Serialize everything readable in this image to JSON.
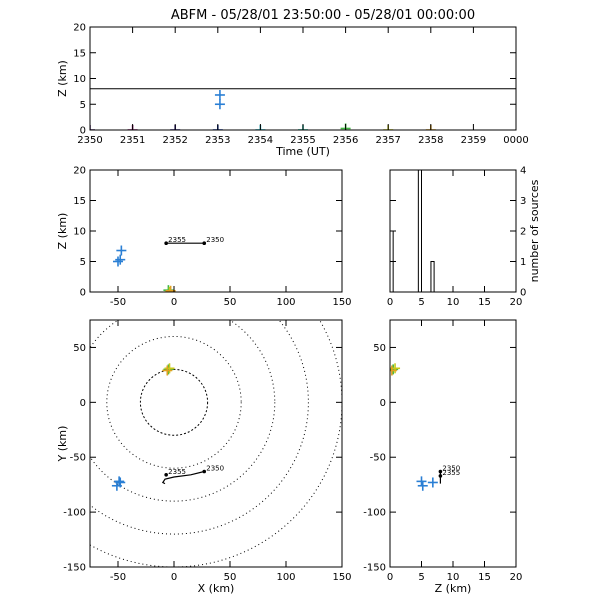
{
  "title": "ABFM - 05/28/01 23:50:00 - 05/28/01 00:00:00",
  "chart_data": [
    {
      "id": "time-height",
      "type": "scatter",
      "xlabel": "Time (UT)",
      "ylabel": "Z (km)",
      "x_ticks": [
        0,
        1,
        2,
        3,
        4,
        5,
        6,
        7,
        8,
        9,
        10
      ],
      "x_tick_labels": [
        "2350",
        "2351",
        "2352",
        "2353",
        "2354",
        "2355",
        "2356",
        "2357",
        "2358",
        "2359",
        "0000"
      ],
      "xlim": [
        0,
        10
      ],
      "ylim": [
        0,
        20
      ],
      "y_ticks": [
        0,
        5,
        10,
        15,
        20
      ],
      "reference_line_y": 8,
      "points": [
        {
          "x": 0.0,
          "y": 0.0,
          "color": "#4b2a6b"
        },
        {
          "x": 1.0,
          "y": 0.0,
          "color": "#8a1a6c"
        },
        {
          "x": 2.0,
          "y": 0.0,
          "color": "#3a2a90"
        },
        {
          "x": 3.0,
          "y": 0.0,
          "color": "#1a3fb0"
        },
        {
          "x": 3.05,
          "y": 5.0,
          "color": "#2a7fd4"
        },
        {
          "x": 3.05,
          "y": 6.8,
          "color": "#2a7fd4"
        },
        {
          "x": 4.0,
          "y": 0.0,
          "color": "#1ab6c8"
        },
        {
          "x": 5.0,
          "y": 0.0,
          "color": "#1ab69a"
        },
        {
          "x": 6.0,
          "y": 0.3,
          "color": "#3fb83f"
        },
        {
          "x": 7.0,
          "y": 0.0,
          "color": "#c8c81a"
        },
        {
          "x": 8.0,
          "y": 0.0,
          "color": "#e0a020"
        }
      ]
    },
    {
      "id": "xz-projection",
      "type": "scatter",
      "xlabel": "",
      "ylabel": "Z (km)",
      "xlim": [
        -75,
        150
      ],
      "ylim": [
        0,
        20
      ],
      "x_ticks": [
        -50,
        0,
        50,
        100,
        150
      ],
      "y_ticks": [
        0,
        5,
        10,
        15,
        20
      ],
      "points": [
        {
          "x": -50,
          "y": 5.0,
          "color": "#2a7fd4"
        },
        {
          "x": -48,
          "y": 5.3,
          "color": "#2a7fd4"
        },
        {
          "x": -47,
          "y": 6.8,
          "color": "#2a7fd4"
        },
        {
          "x": -5,
          "y": 0.3,
          "color": "#3fb83f"
        },
        {
          "x": -4,
          "y": 0.0,
          "color": "#c8c81a"
        },
        {
          "x": -3,
          "y": 0.2,
          "color": "#e0a020"
        }
      ],
      "track": {
        "points": [
          [
            -7,
            8
          ],
          [
            27,
            8
          ]
        ],
        "labels": [
          {
            "x": -7,
            "y": 8,
            "text": "2355"
          },
          {
            "x": 27,
            "y": 8,
            "text": "2350"
          }
        ]
      }
    },
    {
      "id": "height-histogram",
      "type": "bar",
      "xlabel": "",
      "ylabel": "number of sources",
      "xlim": [
        0,
        20
      ],
      "ylim": [
        0,
        4
      ],
      "x_ticks": [
        0,
        5,
        10,
        15,
        20
      ],
      "y_ticks": [
        0,
        1,
        2,
        3,
        4
      ],
      "bins": [
        {
          "x0": 0,
          "x1": 0.5,
          "count": 2
        },
        {
          "x0": 4.5,
          "x1": 5,
          "count": 4
        },
        {
          "x0": 6.5,
          "x1": 7,
          "count": 1
        }
      ]
    },
    {
      "id": "plan-view",
      "type": "scatter",
      "xlabel": "X (km)",
      "ylabel": "Y (km)",
      "xlim": [
        -75,
        150
      ],
      "ylim": [
        -150,
        75
      ],
      "x_ticks": [
        -50,
        0,
        50,
        100,
        150
      ],
      "y_ticks": [
        -150,
        -100,
        -50,
        0,
        50
      ],
      "range_rings_km": [
        30,
        60,
        90,
        120,
        150
      ],
      "points": [
        {
          "x": -51,
          "y": -76,
          "color": "#2a7fd4"
        },
        {
          "x": -49,
          "y": -72,
          "color": "#2a7fd4"
        },
        {
          "x": -48,
          "y": -73,
          "color": "#2a7fd4"
        },
        {
          "x": -5,
          "y": 30,
          "color": "#3fb83f"
        },
        {
          "x": -4,
          "y": 31,
          "color": "#c8c81a"
        },
        {
          "x": -6,
          "y": 29,
          "color": "#e0a020"
        }
      ],
      "track": {
        "points": [
          [
            27,
            -63
          ],
          [
            15,
            -66
          ],
          [
            0,
            -68
          ],
          [
            -8,
            -70
          ],
          [
            -10,
            -73
          ],
          [
            -8,
            -74
          ]
        ],
        "labels": [
          {
            "x": -7,
            "y": -66,
            "text": "2355"
          },
          {
            "x": 27,
            "y": -63,
            "text": "2350"
          }
        ]
      }
    },
    {
      "id": "zy-projection",
      "type": "scatter",
      "xlabel": "Z (km)",
      "ylabel": "",
      "xlim": [
        0,
        20
      ],
      "ylim": [
        -150,
        75
      ],
      "x_ticks": [
        0,
        5,
        10,
        15,
        20
      ],
      "y_ticks": [
        -150,
        -100,
        -50,
        0,
        50
      ],
      "points": [
        {
          "x": 0.5,
          "y": 30,
          "color": "#3fb83f"
        },
        {
          "x": 0.8,
          "y": 31,
          "color": "#c8c81a"
        },
        {
          "x": 0.3,
          "y": 29,
          "color": "#e0a020"
        },
        {
          "x": 5.2,
          "y": -76,
          "color": "#2a7fd4"
        },
        {
          "x": 5.0,
          "y": -72,
          "color": "#2a7fd4"
        },
        {
          "x": 6.8,
          "y": -73,
          "color": "#2a7fd4"
        }
      ],
      "track": {
        "points": [
          [
            8,
            -63
          ],
          [
            8,
            -68
          ],
          [
            8,
            -74
          ]
        ],
        "labels": [
          {
            "x": 8,
            "y": -63,
            "text": "2350"
          },
          {
            "x": 8,
            "y": -67,
            "text": "2355"
          }
        ]
      }
    }
  ]
}
